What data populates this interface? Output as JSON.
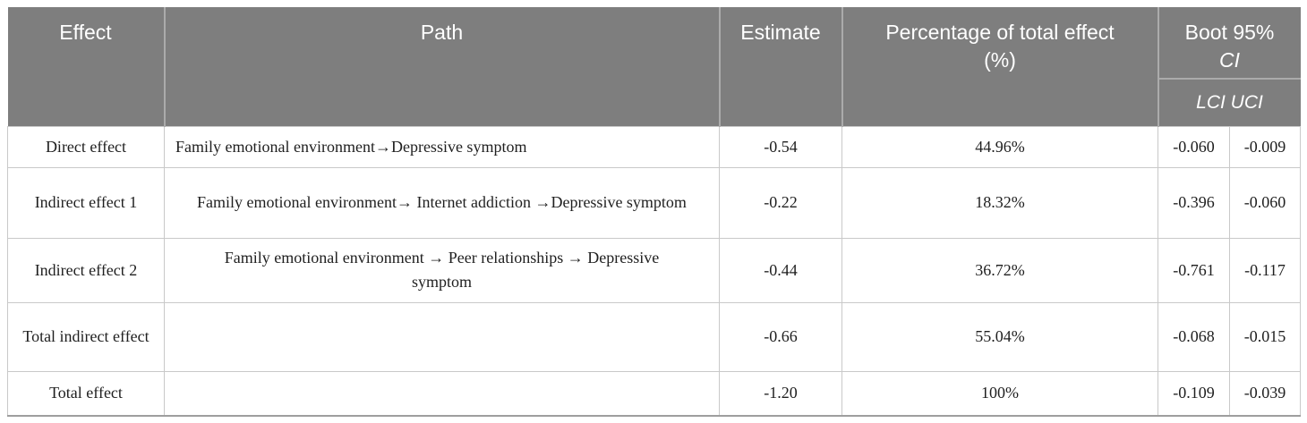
{
  "table": {
    "columns": {
      "effect": "Effect",
      "path": "Path",
      "estimate": "Estimate",
      "percentage_line1": "Percentage of total effect",
      "percentage_line2": "(%)",
      "boot_line1": "Boot 95%",
      "boot_line2": "CI",
      "ci_subheader": "LCI UCI"
    },
    "rows": [
      {
        "effect": "Direct effect",
        "path": "Family emotional environment→Depressive symptom",
        "estimate": "-0.54",
        "percentage": "44.96%",
        "lci": "-0.060",
        "uci": "-0.009"
      },
      {
        "effect": "Indirect effect 1",
        "path": "Family emotional environment→ Internet addiction →Depressive symptom",
        "estimate": "-0.22",
        "percentage": "18.32%",
        "lci": "-0.396",
        "uci": "-0.060"
      },
      {
        "effect": "Indirect effect 2",
        "path": "Family emotional environment → Peer relationships → Depressive symptom",
        "estimate": "-0.44",
        "percentage": "36.72%",
        "lci": "-0.761",
        "uci": "-0.117"
      },
      {
        "effect": "Total indirect effect",
        "path": "",
        "estimate": "-0.66",
        "percentage": "55.04%",
        "lci": "-0.068",
        "uci": "-0.015"
      },
      {
        "effect": "Total effect",
        "path": "",
        "estimate": "-1.20",
        "percentage": "100%",
        "lci": "-0.109",
        "uci": "-0.039"
      }
    ],
    "colors": {
      "header_bg": "#7e7e7e",
      "header_text": "#ffffff",
      "header_divider": "#ababab",
      "body_border": "#c9c9c9",
      "bottom_border": "#9e9e9e",
      "body_text": "#1f1f1f"
    }
  }
}
